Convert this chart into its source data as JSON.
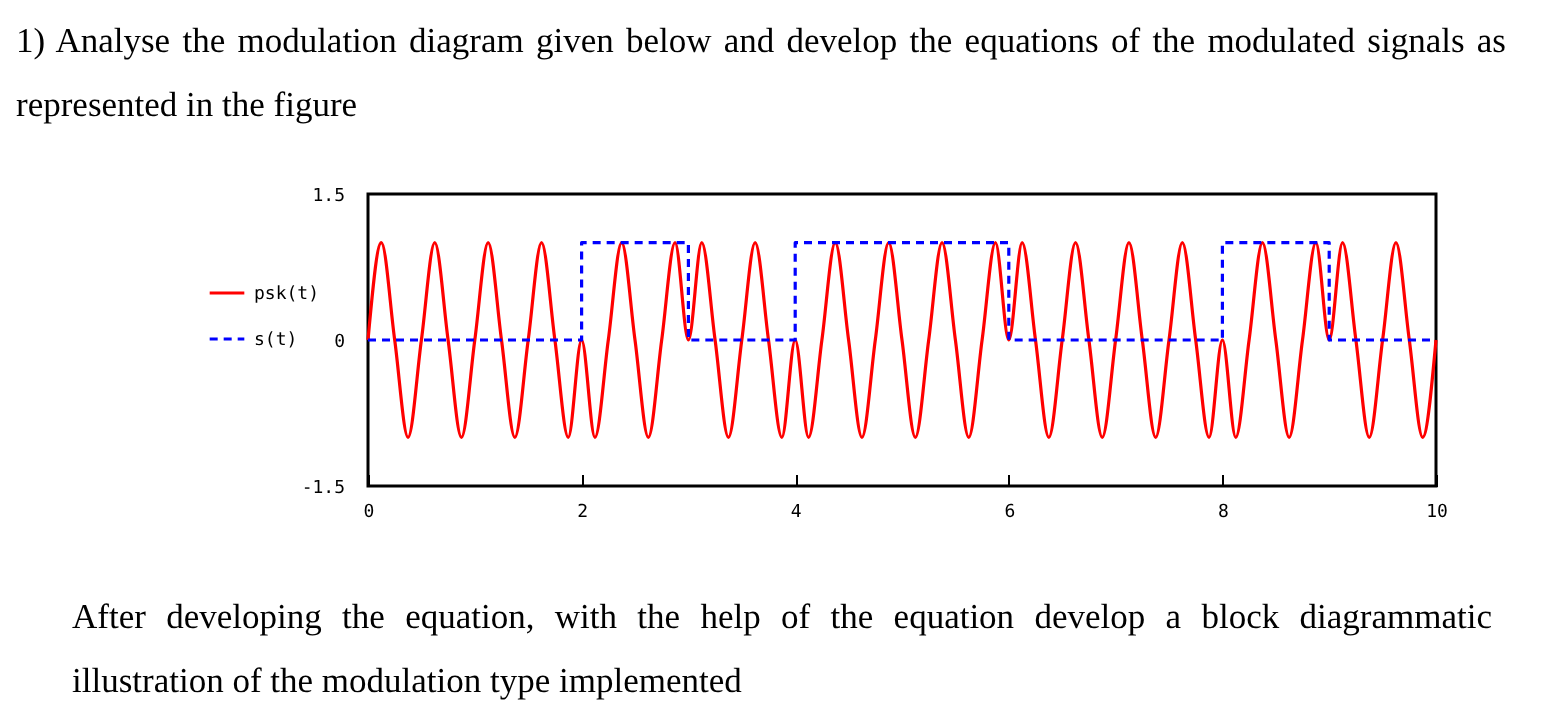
{
  "chart_data": {
    "type": "line",
    "title": "1) Analyse the modulation diagram given below and develop the equations of the modulated signals as represented in the figure",
    "annotations": [
      "After developing the equation, with the help of the equation develop a block diagrammatic illustration of the modulation type implemented"
    ],
    "x": [
      0,
      0.125,
      0.25,
      0.375,
      0.5,
      0.625,
      0.75,
      0.875,
      1,
      1.125,
      1.25,
      1.375,
      1.5,
      1.625,
      1.75,
      1.875,
      2,
      2.125,
      2.25,
      2.375,
      2.5,
      2.625,
      2.75,
      2.875,
      3,
      3.125,
      3.25,
      3.375,
      3.5,
      3.625,
      3.75,
      3.875,
      4,
      4.125,
      4.25,
      4.375,
      4.5,
      4.625,
      4.75,
      4.875,
      5,
      5.125,
      5.25,
      5.375,
      5.5,
      5.625,
      5.75,
      5.875,
      6,
      6.125,
      6.25,
      6.375,
      6.5,
      6.625,
      6.75,
      6.875,
      7,
      7.125,
      7.25,
      7.375,
      7.5,
      7.625,
      7.75,
      7.875,
      8,
      8.125,
      8.25,
      8.375,
      8.5,
      8.625,
      8.75,
      8.875,
      9,
      9.125,
      9.25,
      9.375,
      9.5,
      9.625,
      9.75,
      9.875,
      10
    ],
    "series": [
      {
        "name": "psk(t)",
        "color": "#ff0000",
        "line_style": "solid",
        "values": [
          0,
          1,
          0,
          -1,
          0,
          1,
          0,
          -1,
          0,
          1,
          0,
          -1,
          0,
          1,
          0,
          -1,
          0,
          -1,
          0,
          1,
          0,
          -1,
          0,
          1,
          0,
          1,
          0,
          -1,
          0,
          1,
          0,
          -1,
          0,
          -1,
          0,
          1,
          0,
          -1,
          0,
          1,
          0,
          -1,
          0,
          1,
          0,
          -1,
          0,
          1,
          0,
          1,
          0,
          -1,
          0,
          1,
          0,
          -1,
          0,
          1,
          0,
          -1,
          0,
          1,
          0,
          -1,
          0,
          -1,
          0,
          1,
          0,
          -1,
          0,
          1,
          0,
          1,
          0,
          -1,
          0,
          1,
          0,
          -1,
          0
        ]
      },
      {
        "name": "s(t)",
        "type": "step",
        "color": "#0000ff",
        "line_style": "dashed",
        "x": [
          0,
          2,
          3,
          4,
          6,
          8,
          9,
          10
        ],
        "values": [
          0,
          1,
          0,
          1,
          0,
          1,
          0,
          0
        ]
      }
    ],
    "xlim": [
      0,
      10
    ],
    "xticks": [
      0,
      2,
      4,
      6,
      8,
      10
    ],
    "ylim": [
      -1.5,
      1.5
    ],
    "yticks": [
      -1.5,
      0,
      1.5
    ],
    "grid": false,
    "legend": "left",
    "marker": "none"
  }
}
